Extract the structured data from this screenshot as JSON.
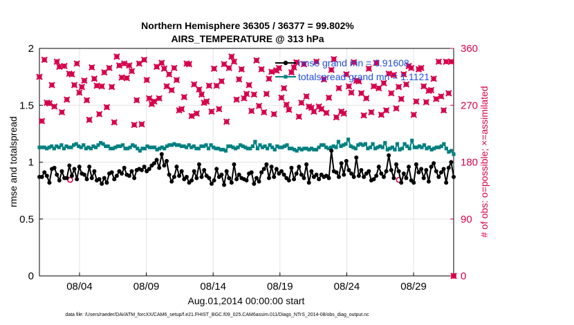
{
  "chart_data": {
    "type": "line",
    "title": "Northern Hemisphere 36305 / 36377 = 99.802%",
    "subtitle": "AIRS_TEMPERATURE @ 313 hPa",
    "xlabel": "Aug.01,2014 00:00:00 start",
    "ylabel": "rmse and totalspread",
    "ylabel_right": "# of obs: o=possible; ×=assimilated",
    "footer": "data file: /Users/raeder/DAI/ATM_forcXX/CAM6_setup/f.e21.FHIST_BGC.f09_025.CAM6assim.011/Diags_NTrS_2014-08/obs_diag_output.nc",
    "x_ticks": [
      "08/04",
      "08/09",
      "08/14",
      "08/19",
      "08/24",
      "08/29"
    ],
    "x_tick_days": [
      4,
      9,
      14,
      19,
      24,
      29
    ],
    "xlim": [
      1.0,
      32.0
    ],
    "ylim": [
      0,
      2
    ],
    "y_ticks": [
      "0",
      "0.5",
      "1",
      "1.5",
      "2"
    ],
    "ylim_right": [
      0,
      360
    ],
    "y_ticks_right": [
      "0",
      "90",
      "180",
      "270",
      "360"
    ],
    "grid": true,
    "legend_position": "top-right",
    "legend": [
      {
        "label": "rmse grand mn = 0.91608",
        "color": "#000000"
      },
      {
        "label": "totalspread grand mn = 1.1121",
        "color": "#008080"
      }
    ],
    "series": [
      {
        "name": "rmse grand mn = 0.91608",
        "color": "#000000",
        "axis": "left",
        "values": [
          0.87,
          0.87,
          0.91,
          0.88,
          0.82,
          0.94,
          0.95,
          0.89,
          0.84,
          0.92,
          0.86,
          0.86,
          0.97,
          0.88,
          0.94,
          0.85,
          0.96,
          0.9,
          0.89,
          0.85,
          0.96,
          0.86,
          0.92,
          0.84,
          0.85,
          0.81,
          0.86,
          0.82,
          0.9,
          0.91,
          0.85,
          0.88,
          0.92,
          0.9,
          0.95,
          0.89,
          0.88,
          0.92,
          0.86,
          0.93,
          0.94,
          0.93,
          0.96,
          0.92,
          0.94,
          0.97,
          0.99,
          1.02,
          0.95,
          1.07,
          0.97,
          1.01,
          0.89,
          0.83,
          0.87,
          0.96,
          0.88,
          0.92,
          0.85,
          0.87,
          0.82,
          0.84,
          0.92,
          0.86,
          0.98,
          0.87,
          0.93,
          0.88,
          0.86,
          0.81,
          0.84,
          0.94,
          0.87,
          0.89,
          0.8,
          0.92,
          0.86,
          0.82,
          0.98,
          0.85,
          0.89,
          0.86,
          0.85,
          0.84,
          0.9,
          0.91,
          0.81,
          0.86,
          0.83,
          0.91,
          0.94,
          0.98,
          0.86,
          0.96,
          0.87,
          0.94,
          0.9,
          0.92,
          0.89,
          0.86,
          0.84,
          0.95,
          0.85,
          0.9,
          0.96,
          0.89,
          0.86,
          0.98,
          0.82,
          0.92,
          0.87,
          0.89,
          0.85,
          0.89,
          0.87,
          0.88,
          0.86,
          1.1,
          0.92,
          0.91,
          0.87,
          0.99,
          0.89,
          1.01,
          0.93,
          0.9,
          0.87,
          1.04,
          0.88,
          0.93,
          0.87,
          0.9,
          0.92,
          0.84,
          0.85,
          0.88,
          0.96,
          0.9,
          0.87,
          0.92,
          1.06,
          0.93,
          0.86,
          0.98,
          0.92,
          0.82,
          0.9,
          0.86,
          0.96,
          0.84,
          0.82,
          0.98,
          0.91,
          0.94,
          0.86,
          0.93,
          0.83,
          0.96,
          0.99,
          0.92,
          0.87,
          0.91,
          0.94,
          0.82,
          0.95,
          1.0,
          0.87
        ],
        "markers": "filled-circle"
      },
      {
        "name": "totalspread grand mn = 1.1121",
        "color": "#008080",
        "axis": "left",
        "values": [
          1.13,
          1.13,
          1.13,
          1.12,
          1.13,
          1.14,
          1.12,
          1.14,
          1.13,
          1.15,
          1.12,
          1.14,
          1.13,
          1.13,
          1.15,
          1.16,
          1.14,
          1.13,
          1.15,
          1.12,
          1.13,
          1.12,
          1.14,
          1.13,
          1.15,
          1.17,
          1.16,
          1.14,
          1.14,
          1.12,
          1.12,
          1.13,
          1.14,
          1.14,
          1.15,
          1.12,
          1.12,
          1.13,
          1.15,
          1.14,
          1.12,
          1.1,
          1.12,
          1.12,
          1.14,
          1.13,
          1.13,
          1.13,
          1.11,
          1.12,
          1.13,
          1.12,
          1.14,
          1.15,
          1.15,
          1.16,
          1.15,
          1.15,
          1.14,
          1.14,
          1.13,
          1.15,
          1.13,
          1.14,
          1.12,
          1.12,
          1.14,
          1.14,
          1.15,
          1.12,
          1.15,
          1.13,
          1.12,
          1.12,
          1.11,
          1.11,
          1.1,
          1.14,
          1.14,
          1.13,
          1.12,
          1.13,
          1.15,
          1.14,
          1.13,
          1.12,
          1.12,
          1.14,
          1.18,
          1.12,
          1.15,
          1.13,
          1.14,
          1.12,
          1.15,
          1.13,
          1.11,
          1.14,
          1.13,
          1.13,
          1.14,
          1.15,
          1.12,
          1.12,
          1.11,
          1.1,
          1.12,
          1.11,
          1.12,
          1.12,
          1.11,
          1.12,
          1.11,
          1.11,
          1.13,
          1.15,
          1.15,
          1.13,
          1.12,
          1.13,
          1.14,
          1.13,
          1.18,
          1.14,
          1.15,
          1.16,
          1.2,
          1.14,
          1.13,
          1.12,
          1.15,
          1.16,
          1.15,
          1.16,
          1.12,
          1.13,
          1.16,
          1.12,
          1.13,
          1.14,
          1.13,
          1.17,
          1.11,
          1.12,
          1.13,
          1.11,
          1.16,
          1.11,
          1.12,
          1.16,
          1.14,
          1.12,
          1.19,
          1.13,
          1.13,
          1.14,
          1.13,
          1.15,
          1.12,
          1.13,
          1.11,
          1.12,
          1.13,
          1.13,
          1.14,
          1.16,
          1.12,
          1.09,
          1.1,
          1.07
        ],
        "markers": "filled-square"
      },
      {
        "name": "# possible",
        "color": "#d6004c",
        "axis": "right",
        "x": [
          3.3,
          27.9
        ],
        "values": [
          152,
          152
        ],
        "markers": "circle"
      },
      {
        "name": "# assimilated",
        "color": "#d6004c",
        "axis": "right",
        "values": [
          315,
          245,
          342,
          274,
          273,
          302,
          268,
          339,
          331,
          259,
          332,
          279,
          320,
          319,
          302,
          336,
          290,
          299,
          309,
          278,
          247,
          330,
          312,
          301,
          256,
          300,
          322,
          267,
          329,
          299,
          243,
          347,
          333,
          314,
          336,
          313,
          333,
          324,
          239,
          278,
          336,
          240,
          342,
          310,
          281,
          272,
          276,
          331,
          281,
          337,
          328,
          300,
          319,
          294,
          329,
          310,
          262,
          264,
          283,
          336,
          335,
          253,
          303,
          257,
          295,
          287,
          274,
          276,
          301,
          260,
          328,
          301,
          264,
          308,
          335,
          244,
          329,
          347,
          339,
          279,
          311,
          327,
          281,
          288,
          302,
          261,
          287,
          341,
          269,
          327,
          259,
          288,
          312,
          323,
          256,
          325,
          329,
          282,
          297,
          271,
          263,
          322,
          330,
          338,
          252,
          274,
          335,
          284,
          268,
          266,
          260,
          339,
          268,
          264,
          311,
          258,
          282,
          326,
          343,
          251,
          297,
          260,
          257,
          319,
          300,
          290,
          338,
          309,
          308,
          289,
          254,
          281,
          328,
          259,
          300,
          337,
          297,
          255,
          305,
          262,
          320,
          289,
          318,
          265,
          299,
          280,
          319,
          303,
          332,
          329,
          255,
          276,
          327,
          329,
          300,
          275,
          293,
          294,
          312,
          280,
          339,
          284,
          262,
          339,
          289,
          339,
          0
        ],
        "markers": "x"
      }
    ]
  }
}
